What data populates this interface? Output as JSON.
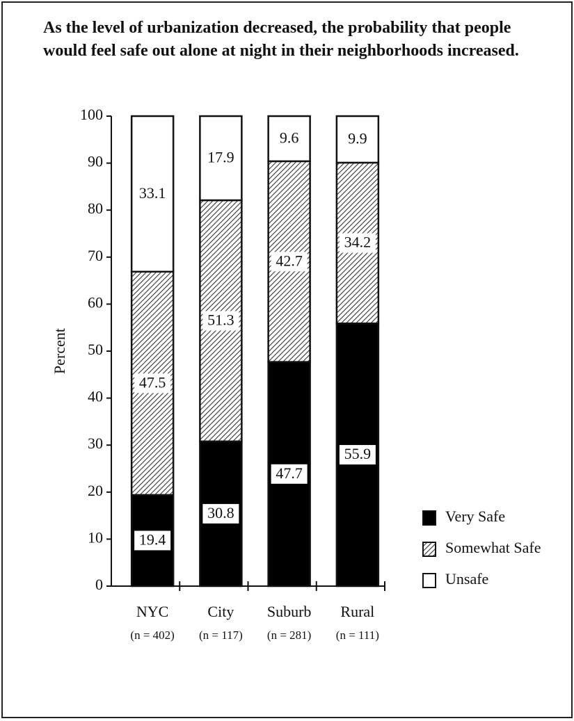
{
  "chart_data": {
    "type": "stacked_bar",
    "title": "As the level of urbanization decreased, the probability that people would feel safe out alone at night in their neighborhoods increased.",
    "ylabel": "Percent",
    "categories": [
      "NYC",
      "City",
      "Suburb",
      "Rural"
    ],
    "category_notes": [
      "(n = 402)",
      "(n = 117)",
      "(n = 281)",
      "(n = 111)"
    ],
    "series": [
      {
        "name": "Very Safe",
        "color": "#000000",
        "values": [
          19.4,
          30.8,
          47.7,
          55.9
        ]
      },
      {
        "name": "Somewhat Safe",
        "color": "#333333",
        "hatch": true,
        "values": [
          47.5,
          51.3,
          42.7,
          34.2
        ]
      },
      {
        "name": "Unsafe",
        "color": "#ffffff",
        "values": [
          33.1,
          17.9,
          9.6,
          9.9
        ]
      }
    ],
    "ylim": [
      0,
      100
    ],
    "yticks": [
      0,
      10,
      20,
      30,
      40,
      50,
      60,
      70,
      80,
      90,
      100
    ]
  }
}
